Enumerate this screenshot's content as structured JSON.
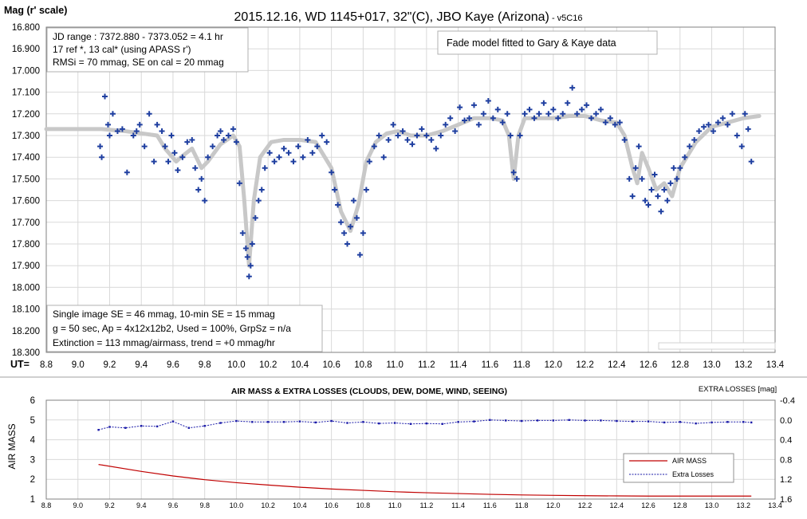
{
  "chart_data": [
    {
      "type": "scatter",
      "title": "2015.12.16, WD 1145+017, 32\"(C), JBO Kaye (Arizona)",
      "title_suffix": " - v5C16",
      "ylabel": "Mag (r' scale)",
      "xlabel": "UT=",
      "xlim": [
        8.8,
        13.4
      ],
      "ylim": [
        16.8,
        18.3
      ],
      "y_reversed": true,
      "xticks": [
        "8.8",
        "9.0",
        "9.2",
        "9.4",
        "9.6",
        "9.8",
        "10.0",
        "10.2",
        "10.4",
        "10.6",
        "10.8",
        "11.0",
        "11.2",
        "11.4",
        "11.6",
        "11.8",
        "12.0",
        "12.2",
        "12.4",
        "12.6",
        "12.8",
        "13.0",
        "13.2",
        "13.4"
      ],
      "yticks": [
        "16.800",
        "16.900",
        "17.000",
        "17.100",
        "17.200",
        "17.300",
        "17.400",
        "17.500",
        "17.600",
        "17.700",
        "17.800",
        "17.900",
        "18.000",
        "18.100",
        "18.200",
        "18.300"
      ],
      "grid": true,
      "info_top": [
        "JD range : 7372.880 - 7373.052 = 4.1 hr",
        "17 ref *, 13 cal* (using APASS r')",
        "RMSi = 70 mmag, SE on cal = 20 mmag"
      ],
      "annotation": "Fade model fitted to Gary & Kaye data",
      "info_bottom": [
        "Single image SE = 46 mmag, 10-min SE = 15 mmag",
        "g = 50 sec, Ap = 4x12x12b2, Used = 100%, GrpSz = n/a",
        "Extinction = 113 mmag/airmass, trend = +0 mmag/hr"
      ],
      "series": [
        {
          "color": "#c8c8c8",
          "marker": "line",
          "x": [
            8.8,
            9.15,
            9.3,
            9.5,
            9.55,
            9.62,
            9.65,
            9.72,
            9.78,
            9.82,
            9.9,
            9.98,
            10.02,
            10.05,
            10.08,
            10.11,
            10.15,
            10.22,
            10.3,
            10.4,
            10.5,
            10.6,
            10.66,
            10.72,
            10.77,
            10.82,
            10.88,
            10.95,
            11.02,
            11.1,
            11.2,
            11.3,
            11.4,
            11.5,
            11.6,
            11.68,
            11.72,
            11.75,
            11.78,
            11.82,
            11.9,
            12.0,
            12.1,
            12.2,
            12.3,
            12.4,
            12.45,
            12.5,
            12.53,
            12.56,
            12.6,
            12.65,
            12.7,
            12.75,
            12.8,
            12.9,
            13.0,
            13.1,
            13.2,
            13.3
          ],
          "y": [
            17.27,
            17.27,
            17.28,
            17.3,
            17.36,
            17.42,
            17.4,
            17.36,
            17.45,
            17.42,
            17.34,
            17.3,
            17.35,
            17.6,
            17.9,
            17.6,
            17.4,
            17.33,
            17.32,
            17.32,
            17.33,
            17.45,
            17.65,
            17.74,
            17.62,
            17.42,
            17.33,
            17.29,
            17.28,
            17.3,
            17.3,
            17.28,
            17.25,
            17.22,
            17.22,
            17.23,
            17.3,
            17.5,
            17.3,
            17.22,
            17.22,
            17.22,
            17.21,
            17.21,
            17.23,
            17.24,
            17.3,
            17.45,
            17.52,
            17.38,
            17.45,
            17.55,
            17.52,
            17.58,
            17.45,
            17.33,
            17.26,
            17.24,
            17.22,
            17.21
          ]
        },
        {
          "color": "#1f3fa0",
          "marker": "plus",
          "x": [
            9.14,
            9.15,
            9.17,
            9.19,
            9.2,
            9.22,
            9.25,
            9.28,
            9.31,
            9.35,
            9.37,
            9.39,
            9.42,
            9.45,
            9.48,
            9.5,
            9.53,
            9.55,
            9.57,
            9.59,
            9.61,
            9.63,
            9.66,
            9.69,
            9.72,
            9.74,
            9.76,
            9.78,
            9.8,
            9.82,
            9.85,
            9.88,
            9.9,
            9.92,
            9.95,
            9.98,
            10.0,
            10.02,
            10.04,
            10.06,
            10.07,
            10.08,
            10.09,
            10.1,
            10.12,
            10.14,
            10.16,
            10.18,
            10.21,
            10.24,
            10.27,
            10.3,
            10.33,
            10.36,
            10.39,
            10.42,
            10.45,
            10.48,
            10.51,
            10.54,
            10.57,
            10.6,
            10.62,
            10.64,
            10.66,
            10.68,
            10.7,
            10.72,
            10.74,
            10.76,
            10.78,
            10.8,
            10.82,
            10.84,
            10.87,
            10.9,
            10.93,
            10.96,
            10.99,
            11.02,
            11.05,
            11.08,
            11.11,
            11.14,
            11.17,
            11.2,
            11.23,
            11.26,
            11.29,
            11.32,
            11.35,
            11.38,
            11.41,
            11.44,
            11.47,
            11.5,
            11.53,
            11.56,
            11.59,
            11.62,
            11.65,
            11.68,
            11.71,
            11.73,
            11.75,
            11.77,
            11.79,
            11.82,
            11.85,
            11.88,
            11.91,
            11.94,
            11.97,
            12.0,
            12.03,
            12.06,
            12.09,
            12.12,
            12.15,
            12.18,
            12.21,
            12.24,
            12.27,
            12.3,
            12.33,
            12.36,
            12.39,
            12.42,
            12.45,
            12.48,
            12.5,
            12.52,
            12.54,
            12.56,
            12.58,
            12.6,
            12.62,
            12.64,
            12.66,
            12.68,
            12.7,
            12.72,
            12.74,
            12.76,
            12.78,
            12.8,
            12.83,
            12.86,
            12.89,
            12.92,
            12.95,
            12.98,
            13.01,
            13.04,
            13.07,
            13.1,
            13.13,
            13.16,
            13.19,
            13.21,
            13.23,
            13.25
          ],
          "y": [
            17.35,
            17.4,
            17.12,
            17.25,
            17.3,
            17.2,
            17.28,
            17.27,
            17.47,
            17.3,
            17.28,
            17.25,
            17.35,
            17.2,
            17.42,
            17.25,
            17.28,
            17.35,
            17.42,
            17.3,
            17.38,
            17.46,
            17.4,
            17.33,
            17.32,
            17.45,
            17.55,
            17.5,
            17.6,
            17.4,
            17.35,
            17.3,
            17.28,
            17.32,
            17.3,
            17.27,
            17.33,
            17.52,
            17.75,
            17.82,
            17.86,
            17.95,
            17.9,
            17.8,
            17.68,
            17.6,
            17.55,
            17.45,
            17.38,
            17.42,
            17.4,
            17.36,
            17.38,
            17.42,
            17.35,
            17.4,
            17.32,
            17.38,
            17.35,
            17.3,
            17.33,
            17.47,
            17.55,
            17.62,
            17.7,
            17.75,
            17.8,
            17.72,
            17.6,
            17.68,
            17.85,
            17.75,
            17.55,
            17.42,
            17.35,
            17.3,
            17.4,
            17.32,
            17.25,
            17.3,
            17.28,
            17.32,
            17.34,
            17.3,
            17.27,
            17.3,
            17.32,
            17.36,
            17.3,
            17.25,
            17.22,
            17.28,
            17.17,
            17.23,
            17.22,
            17.16,
            17.25,
            17.2,
            17.14,
            17.22,
            17.18,
            17.24,
            17.2,
            17.3,
            17.47,
            17.5,
            17.3,
            17.2,
            17.18,
            17.22,
            17.2,
            17.15,
            17.2,
            17.18,
            17.22,
            17.2,
            17.15,
            17.08,
            17.2,
            17.18,
            17.16,
            17.22,
            17.2,
            17.18,
            17.24,
            17.22,
            17.25,
            17.24,
            17.32,
            17.5,
            17.58,
            17.45,
            17.35,
            17.5,
            17.6,
            17.62,
            17.55,
            17.48,
            17.58,
            17.65,
            17.55,
            17.6,
            17.52,
            17.45,
            17.5,
            17.45,
            17.4,
            17.35,
            17.32,
            17.28,
            17.26,
            17.25,
            17.28,
            17.24,
            17.22,
            17.25,
            17.2,
            17.3,
            17.35,
            17.2,
            17.27,
            17.42
          ]
        }
      ]
    },
    {
      "type": "line",
      "title": "AIR MASS & EXTRA LOSSES (CLOUDS, DEW, DOME, WIND, SEEING)",
      "ylabel": "AIR MASS",
      "y2label": "EXTRA LOSSES [mag]",
      "xlim": [
        8.8,
        13.4
      ],
      "ylim": [
        1,
        6
      ],
      "y2lim": [
        -0.4,
        1.6
      ],
      "y2_reversed": true,
      "xticks": [
        "8.8",
        "9.0",
        "9.2",
        "9.4",
        "9.6",
        "9.8",
        "10.0",
        "10.2",
        "10.4",
        "10.6",
        "10.8",
        "11.0",
        "11.2",
        "11.4",
        "11.6",
        "11.8",
        "12.0",
        "12.2",
        "12.4",
        "12.6",
        "12.8",
        "13.0",
        "13.2",
        "13.4"
      ],
      "yticks": [
        "1",
        "2",
        "3",
        "4",
        "5",
        "6"
      ],
      "y2ticks": [
        "-0.4",
        "0.0",
        "0.4",
        "0.8",
        "1.2",
        "1.6"
      ],
      "grid": true,
      "legend_position": "lower-right",
      "series": [
        {
          "name": "AIR MASS",
          "color": "#c00000",
          "axis": "left",
          "x": [
            9.13,
            9.4,
            9.6,
            9.8,
            10.0,
            10.2,
            10.4,
            10.6,
            10.8,
            11.0,
            11.2,
            11.4,
            11.6,
            11.8,
            12.0,
            12.2,
            12.4,
            12.6,
            12.8,
            13.0,
            13.25
          ],
          "y": [
            2.75,
            2.4,
            2.17,
            1.98,
            1.83,
            1.71,
            1.6,
            1.51,
            1.44,
            1.37,
            1.32,
            1.28,
            1.24,
            1.21,
            1.19,
            1.17,
            1.16,
            1.15,
            1.15,
            1.15,
            1.15
          ]
        },
        {
          "name": "Extra Losses",
          "color": "#1a1aa8",
          "axis": "right",
          "x": [
            9.13,
            9.2,
            9.3,
            9.4,
            9.5,
            9.6,
            9.7,
            9.8,
            9.9,
            10.0,
            10.1,
            10.2,
            10.3,
            10.4,
            10.5,
            10.6,
            10.7,
            10.8,
            10.9,
            11.0,
            11.1,
            11.2,
            11.3,
            11.4,
            11.5,
            11.6,
            11.7,
            11.8,
            11.9,
            12.0,
            12.1,
            12.2,
            12.3,
            12.4,
            12.5,
            12.6,
            12.7,
            12.8,
            12.9,
            13.0,
            13.1,
            13.2,
            13.25
          ],
          "y": [
            0.2,
            0.14,
            0.16,
            0.12,
            0.13,
            0.03,
            0.16,
            0.12,
            0.06,
            0.02,
            0.04,
            0.04,
            0.04,
            0.03,
            0.05,
            0.02,
            0.06,
            0.04,
            0.07,
            0.06,
            0.08,
            0.07,
            0.08,
            0.04,
            0.03,
            0.0,
            0.01,
            0.02,
            0.01,
            0.01,
            0.0,
            0.01,
            0.01,
            0.02,
            0.03,
            0.03,
            0.05,
            0.04,
            0.07,
            0.05,
            0.04,
            0.04,
            0.05
          ]
        }
      ]
    }
  ]
}
